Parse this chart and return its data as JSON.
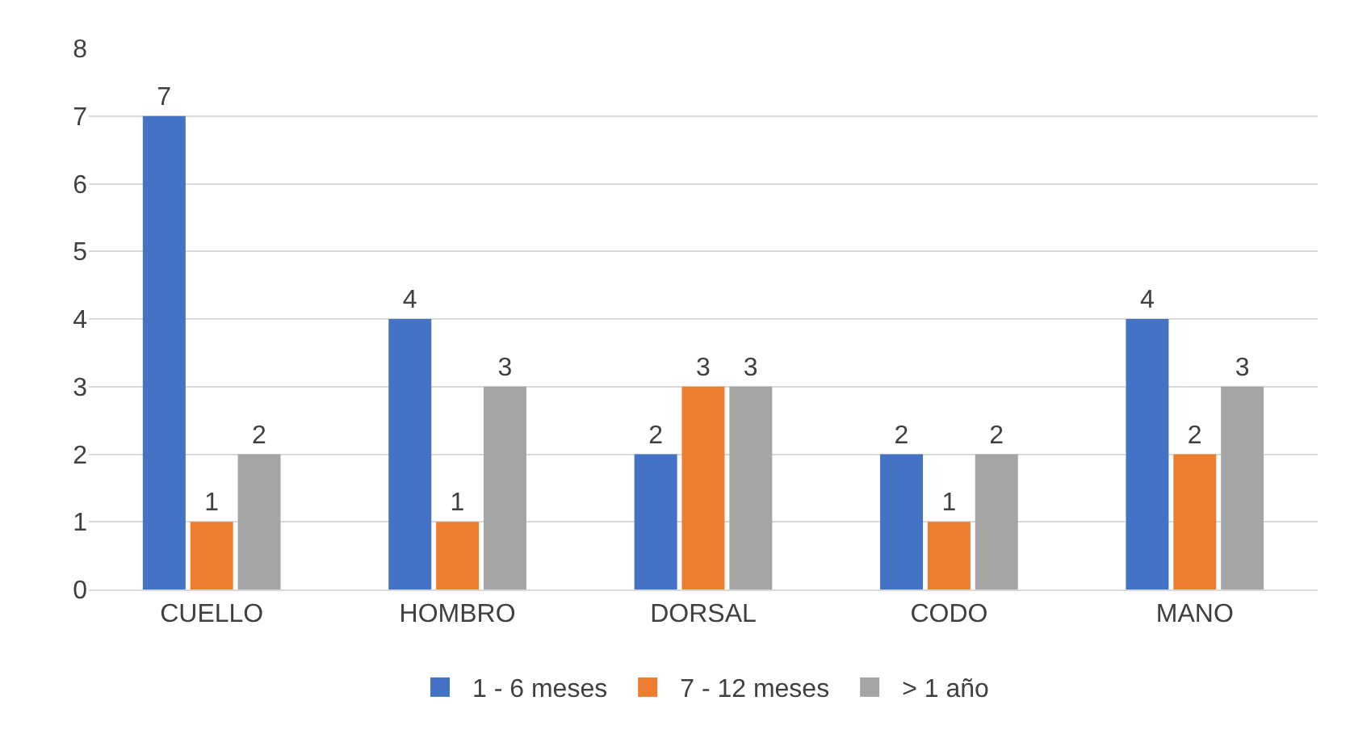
{
  "chart_data": {
    "type": "bar",
    "categories": [
      "CUELLO",
      "HOMBRO",
      "DORSAL",
      "CODO",
      "MANO"
    ],
    "series": [
      {
        "name": "1 - 6 meses",
        "color": "#4472c4",
        "values": [
          7,
          4,
          2,
          2,
          4
        ]
      },
      {
        "name": "7 - 12 meses",
        "color": "#ed7d31",
        "values": [
          1,
          1,
          3,
          1,
          2
        ]
      },
      {
        "name": "> 1 año",
        "color": "#a5a5a5",
        "values": [
          2,
          3,
          3,
          2,
          3
        ]
      }
    ],
    "ylim": [
      0,
      8
    ],
    "yticks": [
      0,
      1,
      2,
      3,
      4,
      5,
      6,
      7,
      8
    ],
    "grid": "y",
    "legend": "bottom",
    "data_labels": true
  }
}
